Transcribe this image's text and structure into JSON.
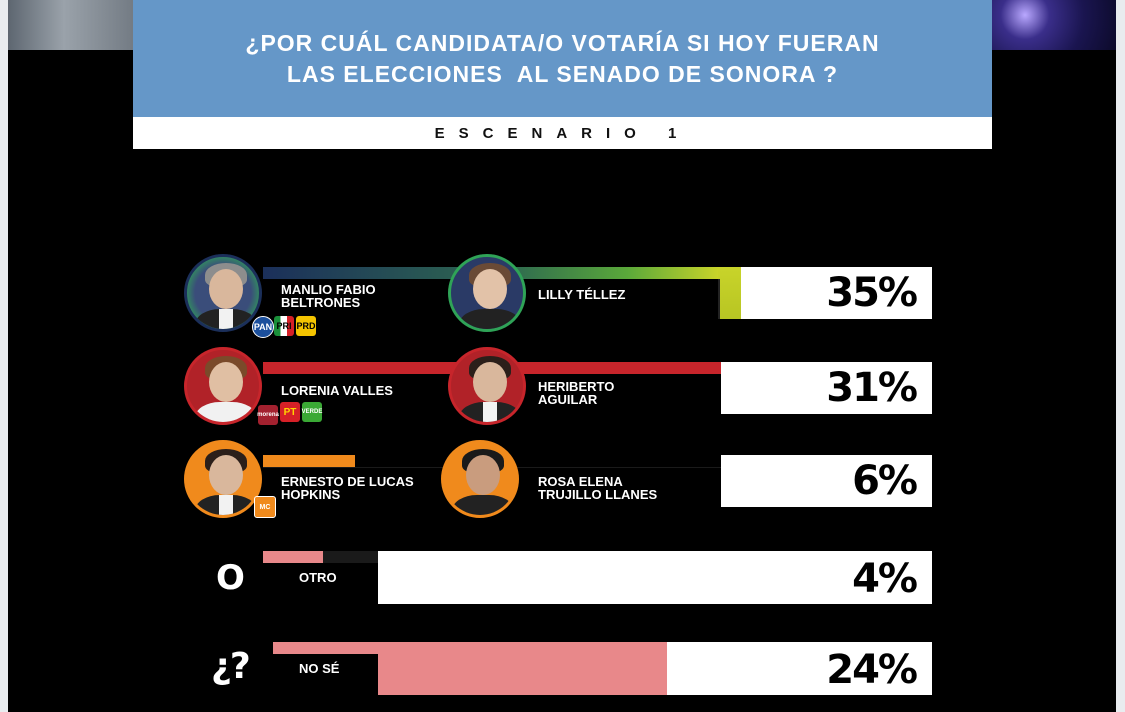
{
  "header": {
    "title_line1": "¿POR CUÁL CANDIDATA/O VOTARÍA SI HOY FUERAN",
    "title_line2": "LAS ELECCIONES  AL SENADO DE SONORA ?",
    "scenario": "ESCENARIO 1"
  },
  "rows": [
    {
      "left_name": "MANLIO FABIO\nBELTRONES",
      "right_name": "LILLY TÉLLEZ",
      "pct_label": "35%",
      "left_parties": [
        "PAN",
        "PRI",
        "PRD"
      ]
    },
    {
      "left_name": "LORENIA VALLES",
      "right_name": "HERIBERTO\nAGUILAR",
      "pct_label": "31%",
      "left_parties": [
        "morena",
        "PT",
        "VERDE"
      ]
    },
    {
      "left_name": "ERNESTO DE LUCAS\nHOPKINS",
      "right_name": "ROSA ELENA\nTRUJILLO LLANES",
      "pct_label": "6%",
      "left_parties": [
        "MC"
      ]
    },
    {
      "symbol": "O",
      "label": "OTRO",
      "pct_label": "4%"
    },
    {
      "symbol": "¿?",
      "label": "NO SÉ",
      "pct_label": "24%"
    }
  ],
  "chart_data": {
    "type": "bar",
    "title": "¿POR CUÁL CANDIDATA/O VOTARÍA SI HOY FUERAN LAS ELECCIONES  AL SENADO DE SONORA ?",
    "subtitle": "ESCENARIO 1",
    "categories": [
      "MANLIO FABIO BELTRONES / LILLY TÉLLEZ",
      "LORENIA VALLES / HERIBERTO AGUILAR",
      "ERNESTO DE LUCAS HOPKINS / ROSA ELENA TRUJILLO LLANES",
      "OTRO",
      "NO SÉ"
    ],
    "values": [
      35,
      31,
      6,
      4,
      24
    ],
    "ylim": [
      0,
      100
    ],
    "colors": [
      "#c8d42a",
      "#c7252b",
      "#f08a1c",
      "#e8888a",
      "#e8888a"
    ]
  }
}
